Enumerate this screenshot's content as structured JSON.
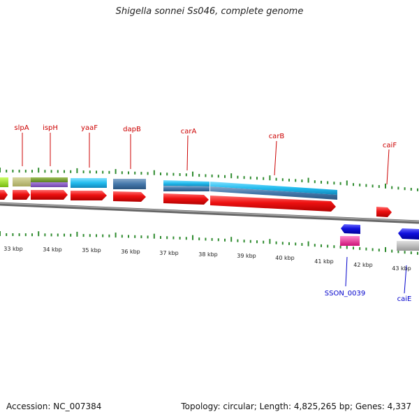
{
  "title": "Shigella sonnei Ss046, complete genome",
  "footer": {
    "accession": "Accession: NC_007384",
    "summary": "Topology: circular; Length: 4,825,265 bp; Genes: 4,337"
  },
  "scale": {
    "ticks": [
      "33 kbp",
      "34 kbp",
      "35 kbp",
      "36 kbp",
      "37 kbp",
      "38 kbp",
      "39 kbp",
      "40 kbp",
      "41 kbp",
      "42 kbp",
      "43 kbp"
    ],
    "color": "#2e8b2e"
  },
  "genes": {
    "top_labels": [
      "slpA",
      "ispH",
      "yaaF",
      "dapB",
      "carA",
      "carB",
      "caiF"
    ],
    "bottom_labels": [
      "SSON_0039",
      "caiE"
    ],
    "top_label_color": "#cc0000",
    "bottom_label_color": "#0000cc"
  },
  "feature_colors": {
    "cds_forward": "#ee1111",
    "cds_reverse": "#1111dd",
    "backbone": "#888888",
    "carA_carB": "#22bbee",
    "dapB": "#4477aa",
    "ispH": "#6a8f2a",
    "slpA": "#b8b870",
    "sson_0039": "#ee3399",
    "caiE_track": "#bbbbbb"
  }
}
